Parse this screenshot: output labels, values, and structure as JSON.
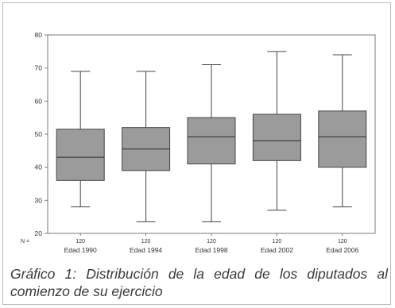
{
  "chart_data": {
    "type": "box",
    "categories": [
      "Edad 1990",
      "Edad 1994",
      "Edad 1998",
      "Edad 2002",
      "Edad 2006"
    ],
    "n_label": "N =",
    "n_values": [
      "120",
      "120",
      "120",
      "120",
      "120"
    ],
    "boxes": [
      {
        "min": 28,
        "q1": 36,
        "median": 43,
        "q3": 51.5,
        "max": 69
      },
      {
        "min": 23.5,
        "q1": 39,
        "median": 45.5,
        "q3": 52,
        "max": 69
      },
      {
        "min": 23.5,
        "q1": 41,
        "median": 49.2,
        "q3": 55,
        "max": 71
      },
      {
        "min": 27,
        "q1": 42,
        "median": 48,
        "q3": 56,
        "max": 75
      },
      {
        "min": 28,
        "q1": 40,
        "median": 49.2,
        "q3": 57,
        "max": 74
      }
    ],
    "ylim": [
      20,
      80
    ],
    "yticks": [
      20,
      30,
      40,
      50,
      60,
      70,
      80
    ],
    "box_color": "#9b9b9b",
    "line_color": "#444444",
    "grid": false
  },
  "caption": "Gráfico 1: Distribución de la edad de los diputados al comienzo de su ejercicio"
}
